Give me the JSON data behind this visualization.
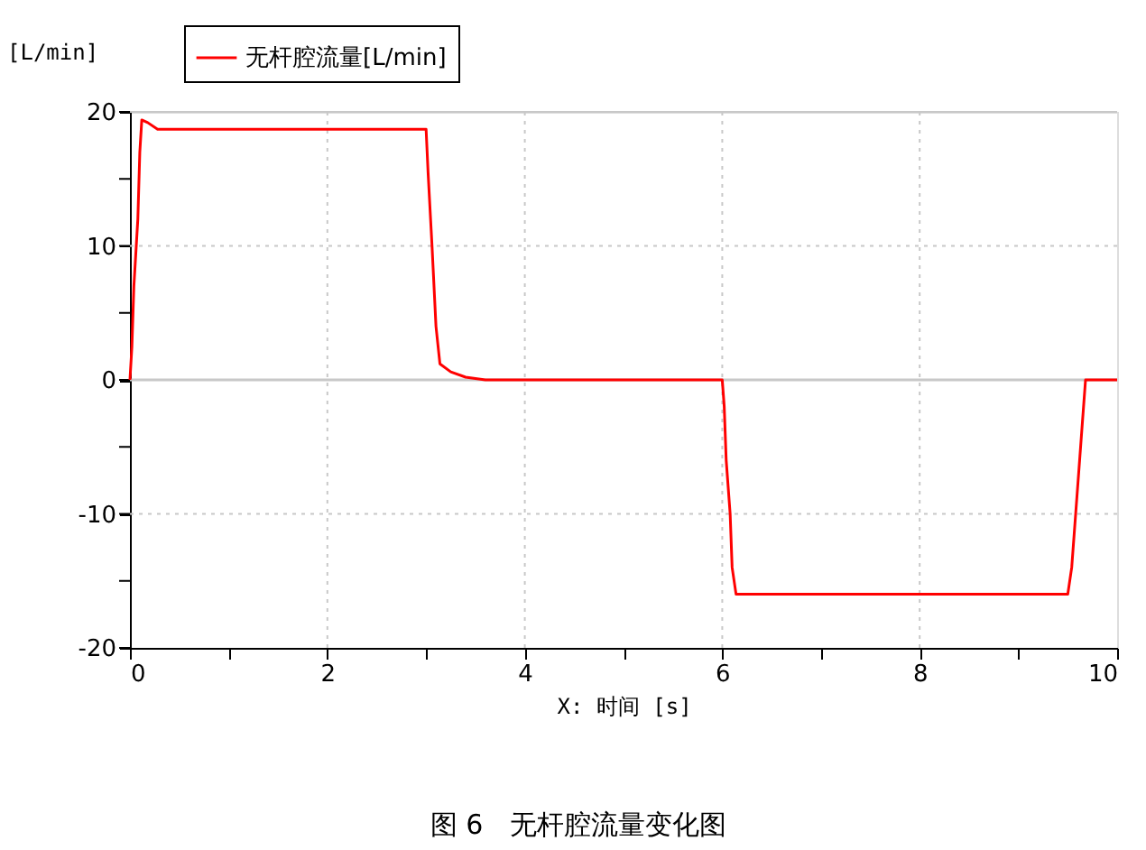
{
  "chart_data": {
    "type": "line",
    "ylabel": "[L/min]",
    "xlabel": "X: 时间 [s]",
    "annotations": [
      "图 6　无杆腔流量变化图"
    ],
    "series": [
      {
        "name": "无杆腔流量[L/min]",
        "color": "#ff0000",
        "x": [
          0,
          0.02,
          0.04,
          0.08,
          0.1,
          0.12,
          0.18,
          0.28,
          3.0,
          3.02,
          3.06,
          3.1,
          3.14,
          3.25,
          3.4,
          3.6,
          6.0,
          6.02,
          6.04,
          6.08,
          6.1,
          6.14,
          9.5,
          9.54,
          9.58,
          9.62,
          9.66,
          9.68,
          10
        ],
        "values": [
          0,
          2.5,
          7,
          12,
          17,
          19.4,
          19.2,
          18.7,
          18.7,
          15.5,
          10,
          4,
          1.2,
          0.6,
          0.2,
          0,
          0,
          -2,
          -6,
          -10,
          -14,
          -16,
          -16,
          -14,
          -10,
          -6,
          -2,
          0,
          0
        ]
      }
    ],
    "xlim": [
      0,
      10
    ],
    "xticks": [
      0,
      {
        "value": 1,
        "label": null
      },
      2,
      {
        "value": 3,
        "label": null
      },
      4,
      {
        "value": 5,
        "label": null
      },
      6,
      {
        "value": 7,
        "label": null
      },
      8,
      {
        "value": 9,
        "label": null
      },
      10
    ],
    "ylim": [
      -20,
      20
    ],
    "yticks": [
      -20,
      {
        "value": -15,
        "label": null
      },
      -10,
      {
        "value": -5,
        "label": null
      },
      0,
      {
        "value": 5,
        "label": null
      },
      10,
      {
        "value": 15,
        "label": null
      },
      20
    ],
    "grid": true,
    "legend": "top",
    "line_style": "solid",
    "marker": "none",
    "ref_lines": [
      {
        "axis": "y",
        "value": 0,
        "label": null,
        "color": "#c8c8c8",
        "line_style": "solid"
      }
    ]
  }
}
